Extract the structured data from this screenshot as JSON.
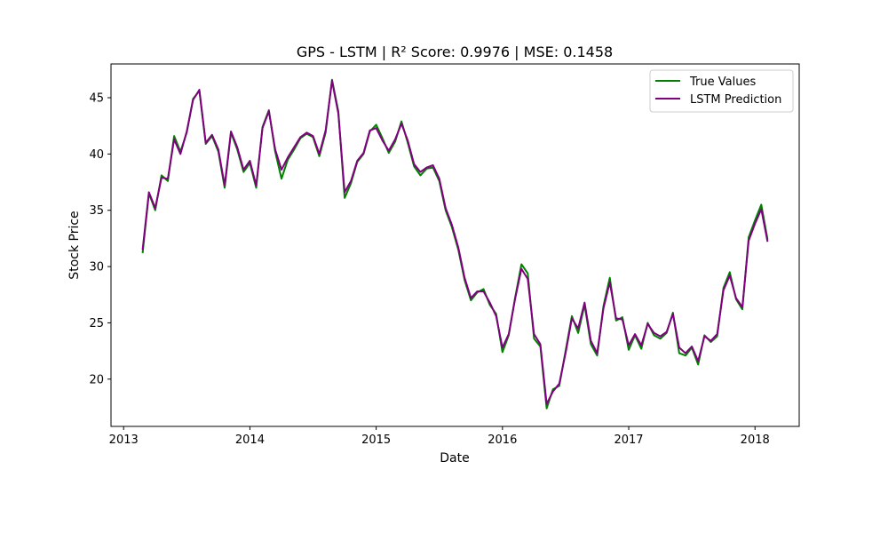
{
  "chart_data": {
    "type": "line",
    "title": "GPS - LSTM | R² Score: 0.9976 | MSE: 0.1458",
    "xlabel": "Date",
    "ylabel": "Stock Price",
    "xlim": [
      2012.9,
      2018.35
    ],
    "ylim": [
      15.8,
      48.0
    ],
    "x_ticks": [
      2013,
      2014,
      2015,
      2016,
      2017,
      2018
    ],
    "x_tick_labels": [
      "2013",
      "2014",
      "2015",
      "2016",
      "2017",
      "2018"
    ],
    "y_ticks": [
      20,
      25,
      30,
      35,
      40,
      45
    ],
    "y_tick_labels": [
      "20",
      "25",
      "30",
      "35",
      "40",
      "45"
    ],
    "grid": false,
    "legend": "top-right",
    "x": [
      2013.15,
      2013.2,
      2013.25,
      2013.3,
      2013.35,
      2013.4,
      2013.45,
      2013.5,
      2013.55,
      2013.6,
      2013.65,
      2013.7,
      2013.75,
      2013.8,
      2013.85,
      2013.9,
      2013.95,
      2014.0,
      2014.05,
      2014.1,
      2014.15,
      2014.2,
      2014.25,
      2014.3,
      2014.35,
      2014.4,
      2014.45,
      2014.5,
      2014.55,
      2014.6,
      2014.65,
      2014.7,
      2014.75,
      2014.8,
      2014.85,
      2014.9,
      2014.95,
      2015.0,
      2015.05,
      2015.1,
      2015.15,
      2015.2,
      2015.25,
      2015.3,
      2015.35,
      2015.4,
      2015.45,
      2015.5,
      2015.55,
      2015.6,
      2015.65,
      2015.7,
      2015.75,
      2015.8,
      2015.85,
      2015.9,
      2015.95,
      2016.0,
      2016.05,
      2016.1,
      2016.15,
      2016.2,
      2016.25,
      2016.3,
      2016.35,
      2016.4,
      2016.45,
      2016.5,
      2016.55,
      2016.6,
      2016.65,
      2016.7,
      2016.75,
      2016.8,
      2016.85,
      2016.9,
      2016.95,
      2017.0,
      2017.05,
      2017.1,
      2017.15,
      2017.2,
      2017.25,
      2017.3,
      2017.35,
      2017.4,
      2017.45,
      2017.5,
      2017.55,
      2017.6,
      2017.65,
      2017.7,
      2017.75,
      2017.8,
      2017.85,
      2017.9,
      2017.95,
      2018.0,
      2018.05,
      2018.1
    ],
    "series": [
      {
        "name": "True Values",
        "color": "#008000",
        "values": [
          31.2,
          36.5,
          35.0,
          38.1,
          37.6,
          41.6,
          40.2,
          41.9,
          44.9,
          45.6,
          40.9,
          41.6,
          40.2,
          37.0,
          41.9,
          40.4,
          38.4,
          39.2,
          37.0,
          42.4,
          43.9,
          40.2,
          37.8,
          39.5,
          40.4,
          41.4,
          41.8,
          41.5,
          39.8,
          41.9,
          46.6,
          43.8,
          36.1,
          37.4,
          39.3,
          40.0,
          42.0,
          42.6,
          41.4,
          40.1,
          41.1,
          42.9,
          41.0,
          38.9,
          38.1,
          38.7,
          38.8,
          37.6,
          35.0,
          33.5,
          31.5,
          28.8,
          27.0,
          27.7,
          28.0,
          26.6,
          25.8,
          22.4,
          23.9,
          27.2,
          30.2,
          29.4,
          23.6,
          22.9,
          17.4,
          19.1,
          19.4,
          22.5,
          25.6,
          24.1,
          26.6,
          23.1,
          22.1,
          26.5,
          29.0,
          25.2,
          25.5,
          22.6,
          23.9,
          22.7,
          25.0,
          23.9,
          23.6,
          24.1,
          25.9,
          22.3,
          22.1,
          22.8,
          21.3,
          23.9,
          23.3,
          23.8,
          28.1,
          29.5,
          27.1,
          26.2,
          32.6,
          34.1,
          35.5,
          32.4
        ]
      },
      {
        "name": "LSTM Prediction",
        "color": "#800080",
        "values": [
          31.5,
          36.6,
          35.2,
          37.9,
          37.8,
          41.3,
          40.0,
          42.0,
          44.8,
          45.7,
          41.0,
          41.7,
          40.4,
          37.2,
          42.0,
          40.6,
          38.6,
          39.4,
          37.2,
          42.3,
          43.8,
          40.4,
          38.6,
          39.7,
          40.6,
          41.5,
          41.9,
          41.6,
          40.0,
          42.1,
          46.5,
          43.6,
          36.6,
          37.6,
          39.4,
          40.1,
          42.1,
          42.3,
          41.2,
          40.3,
          41.3,
          42.7,
          41.2,
          39.1,
          38.4,
          38.8,
          39.0,
          37.8,
          35.2,
          33.7,
          31.7,
          29.0,
          27.2,
          27.8,
          27.8,
          26.8,
          25.6,
          22.8,
          24.0,
          27.1,
          29.8,
          28.9,
          24.0,
          23.1,
          17.8,
          18.9,
          19.6,
          22.3,
          25.4,
          24.5,
          26.8,
          23.4,
          22.3,
          26.3,
          28.6,
          25.4,
          25.3,
          23.0,
          24.0,
          23.0,
          24.9,
          24.1,
          23.8,
          24.2,
          25.8,
          22.8,
          22.3,
          22.9,
          21.6,
          23.8,
          23.4,
          24.0,
          27.9,
          29.2,
          27.2,
          26.4,
          32.3,
          33.8,
          35.1,
          32.2
        ]
      }
    ]
  }
}
